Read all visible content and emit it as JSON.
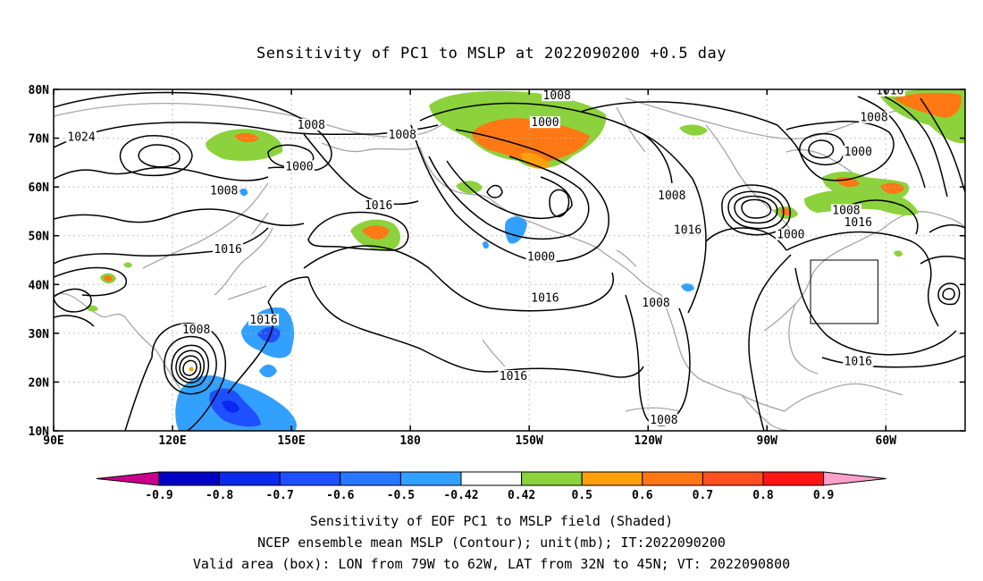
{
  "title": "Sensitivity of PC1 to MSLP at 2022090200 +0.5 day",
  "map": {
    "lat_ticks": [
      "80N",
      "70N",
      "60N",
      "50N",
      "40N",
      "30N",
      "20N",
      "10N"
    ],
    "lat_values": [
      80,
      70,
      60,
      50,
      40,
      30,
      20,
      10
    ],
    "lon_ticks": [
      "90E",
      "120E",
      "150E",
      "180",
      "150W",
      "120W",
      "90W",
      "60W"
    ],
    "lon_values": [
      90,
      120,
      150,
      180,
      210,
      240,
      270,
      300
    ],
    "lon_range": [
      90,
      320
    ],
    "lat_range": [
      10,
      80
    ],
    "valid_box": {
      "lon": [
        281,
        298
      ],
      "lat": [
        32,
        45
      ]
    },
    "contour_labels": [
      {
        "text": "1024",
        "lon": 97,
        "lat": 70
      },
      {
        "text": "1008",
        "lon": 155,
        "lat": 72.5
      },
      {
        "text": "1000",
        "lon": 152,
        "lat": 64
      },
      {
        "text": "1008",
        "lon": 133,
        "lat": 59
      },
      {
        "text": "1016",
        "lon": 134,
        "lat": 47
      },
      {
        "text": "1008",
        "lon": 126,
        "lat": 30.5
      },
      {
        "text": "1016",
        "lon": 143,
        "lat": 32.5
      },
      {
        "text": "1016",
        "lon": 172,
        "lat": 56
      },
      {
        "text": "1008",
        "lon": 178,
        "lat": 70.5
      },
      {
        "text": "1008",
        "lon": 217,
        "lat": 78.5
      },
      {
        "text": "1000",
        "lon": 214,
        "lat": 73
      },
      {
        "text": "1000",
        "lon": 213,
        "lat": 45.5
      },
      {
        "text": "1016",
        "lon": 214,
        "lat": 37
      },
      {
        "text": "1016",
        "lon": 206,
        "lat": 21
      },
      {
        "text": "1008",
        "lon": 246,
        "lat": 58
      },
      {
        "text": "1016",
        "lon": 250,
        "lat": 51
      },
      {
        "text": "1008",
        "lon": 242,
        "lat": 36
      },
      {
        "text": "1008",
        "lon": 244,
        "lat": 12
      },
      {
        "text": "1000",
        "lon": 276,
        "lat": 50
      },
      {
        "text": "1008",
        "lon": 290,
        "lat": 55
      },
      {
        "text": "1016",
        "lon": 293,
        "lat": 52.5
      },
      {
        "text": "1000",
        "lon": 293,
        "lat": 67
      },
      {
        "text": "1008",
        "lon": 297,
        "lat": 74
      },
      {
        "text": "1016",
        "lon": 301,
        "lat": 79.5
      },
      {
        "text": "1016",
        "lon": 293,
        "lat": 24
      }
    ]
  },
  "colorbar": {
    "labels": [
      "-0.9",
      "-0.8",
      "-0.7",
      "-0.6",
      "-0.5",
      "-0.42",
      "0.42",
      "0.5",
      "0.6",
      "0.7",
      "0.8",
      "0.9"
    ],
    "colors": [
      "#0000c8",
      "#0a28f0",
      "#1e50ff",
      "#2878ff",
      "#32a0ff",
      "#ffffff",
      "#8cd23c",
      "#ffa00a",
      "#ff7814",
      "#ff501e",
      "#ff1414"
    ],
    "low_end": "#c8008c",
    "high_end": "#ffa0c8"
  },
  "caption": {
    "line1": "Sensitivity of EOF PC1 to MSLP field (Shaded)",
    "line2": "NCEP ensemble mean MSLP (Contour); unit(mb); IT:2022090200",
    "line3": "Valid area (box): LON from 79W to 62W, LAT from 32N to 45N; VT: 2022090800"
  }
}
